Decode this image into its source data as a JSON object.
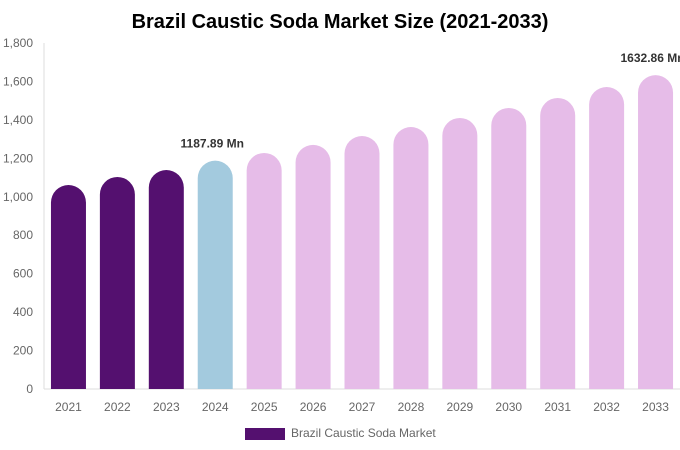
{
  "chart_data": {
    "type": "bar",
    "title": "Brazil Caustic Soda Market Size (2021-2033)",
    "categories": [
      "2021",
      "2022",
      "2023",
      "2024",
      "2025",
      "2026",
      "2027",
      "2028",
      "2029",
      "2030",
      "2031",
      "2032",
      "2033"
    ],
    "series": [
      {
        "name": "Brazil Caustic Soda Market",
        "values": [
          1061,
          1103,
          1139,
          1187.89,
          1228,
          1270,
          1316,
          1363,
          1410,
          1462,
          1514,
          1571,
          1632.86
        ]
      }
    ],
    "bar_colors": [
      "#54106f",
      "#54106f",
      "#54106f",
      "#a3cade",
      "#e6bce8",
      "#e6bce8",
      "#e6bce8",
      "#e6bce8",
      "#e6bce8",
      "#e6bce8",
      "#e6bce8",
      "#e6bce8",
      "#e6bce8"
    ],
    "data_labels": [
      {
        "index": 3,
        "text": "1187.89 Mn"
      },
      {
        "index": 12,
        "text": "1632.86 Mn"
      }
    ],
    "yticks": [
      "0",
      "200",
      "400",
      "600",
      "800",
      "1,000",
      "1,200",
      "1,400",
      "1,600",
      "1,800"
    ],
    "ylim": [
      0,
      1800
    ],
    "grid": false,
    "legend": "bottom",
    "legend_color": "#54106f"
  }
}
